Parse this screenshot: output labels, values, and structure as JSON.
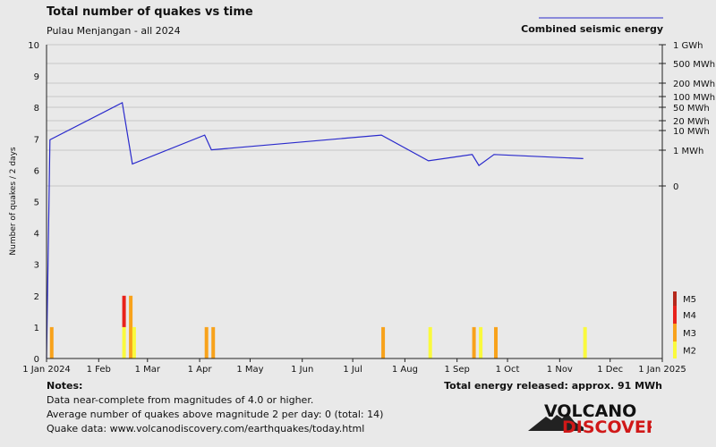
{
  "title": "Total number of quakes vs time",
  "subtitle": "Pulau Menjangan - all 2024",
  "legend": {
    "label": "Combined seismic energy",
    "line_color": "#2a2acc"
  },
  "mag_legend": [
    {
      "label": "M5",
      "color": "#b5281b"
    },
    {
      "label": "M4",
      "color": "#e8221b"
    },
    {
      "label": "M3",
      "color": "#f8a21b"
    },
    {
      "label": "M2",
      "color": "#fafa3c"
    }
  ],
  "notes": {
    "title": "Notes:",
    "lines": [
      "Data near-complete from magnitudes of 4.0 or higher.",
      "Average number of quakes above magnitude 2 per day: 0 (total: 14)",
      "Quake data: www.volcanodiscovery.com/earthquakes/today.html"
    ]
  },
  "total_energy": "Total energy released: approx. 91 MWh",
  "logo": {
    "line1": "VOLCANO",
    "line2": "DISCOVERY"
  },
  "chart_data": {
    "type": "bar",
    "xlim": [
      "2024-01-01",
      "2025-01-01"
    ],
    "ylim": [
      0,
      10
    ],
    "ylabel": "Number of quakes / 2 days",
    "x_ticks": [
      "1 Jan 2024",
      "1 Feb",
      "1 Mar",
      "1 Apr",
      "1 May",
      "1 Jun",
      "1 Jul",
      "1 Aug",
      "1 Sep",
      "1 Oct",
      "1 Nov",
      "1 Dec",
      "1 Jan 2025"
    ],
    "x_tick_dates": [
      "2024-01-01",
      "2024-02-01",
      "2024-03-01",
      "2024-04-01",
      "2024-05-01",
      "2024-06-01",
      "2024-07-01",
      "2024-08-01",
      "2024-09-01",
      "2024-10-01",
      "2024-11-01",
      "2024-12-01",
      "2025-01-01"
    ],
    "y_ticks": [
      0,
      1,
      2,
      3,
      4,
      5,
      6,
      7,
      8,
      9,
      10
    ],
    "bars": [
      {
        "date": "2024-01-03",
        "M3": 1
      },
      {
        "date": "2024-02-15",
        "M2": 1,
        "M4": 1
      },
      {
        "date": "2024-02-19",
        "M3": 2
      },
      {
        "date": "2024-02-21",
        "M2": 1
      },
      {
        "date": "2024-04-04",
        "M3": 1
      },
      {
        "date": "2024-04-08",
        "M3": 1
      },
      {
        "date": "2024-07-18",
        "M3": 1
      },
      {
        "date": "2024-08-15",
        "M2": 1
      },
      {
        "date": "2024-09-10",
        "M3": 1
      },
      {
        "date": "2024-09-14",
        "M2": 1
      },
      {
        "date": "2024-09-23",
        "M3": 1
      },
      {
        "date": "2024-11-15",
        "M2": 1
      }
    ],
    "energy_axis": {
      "ticks": [
        "1 GWh",
        "500 MWh",
        "200 MWh",
        "100 MWh",
        "50 MWh",
        "20 MWh",
        "10 MWh",
        "1 MWh",
        "0"
      ],
      "tick_values_mwh": [
        1000,
        500,
        200,
        100,
        50,
        20,
        10,
        1,
        0
      ]
    },
    "energy_series": {
      "name": "Combined seismic energy",
      "points": [
        [
          "2024-01-01",
          0
        ],
        [
          "2024-01-03",
          6.97
        ],
        [
          "2024-02-15",
          8.15
        ],
        [
          "2024-02-21",
          6.2
        ],
        [
          "2024-04-04",
          7.12
        ],
        [
          "2024-04-08",
          6.65
        ],
        [
          "2024-07-18",
          7.12
        ],
        [
          "2024-08-15",
          6.3
        ],
        [
          "2024-09-10",
          6.5
        ],
        [
          "2024-09-14",
          6.15
        ],
        [
          "2024-09-23",
          6.5
        ],
        [
          "2024-11-15",
          6.37
        ]
      ]
    }
  }
}
